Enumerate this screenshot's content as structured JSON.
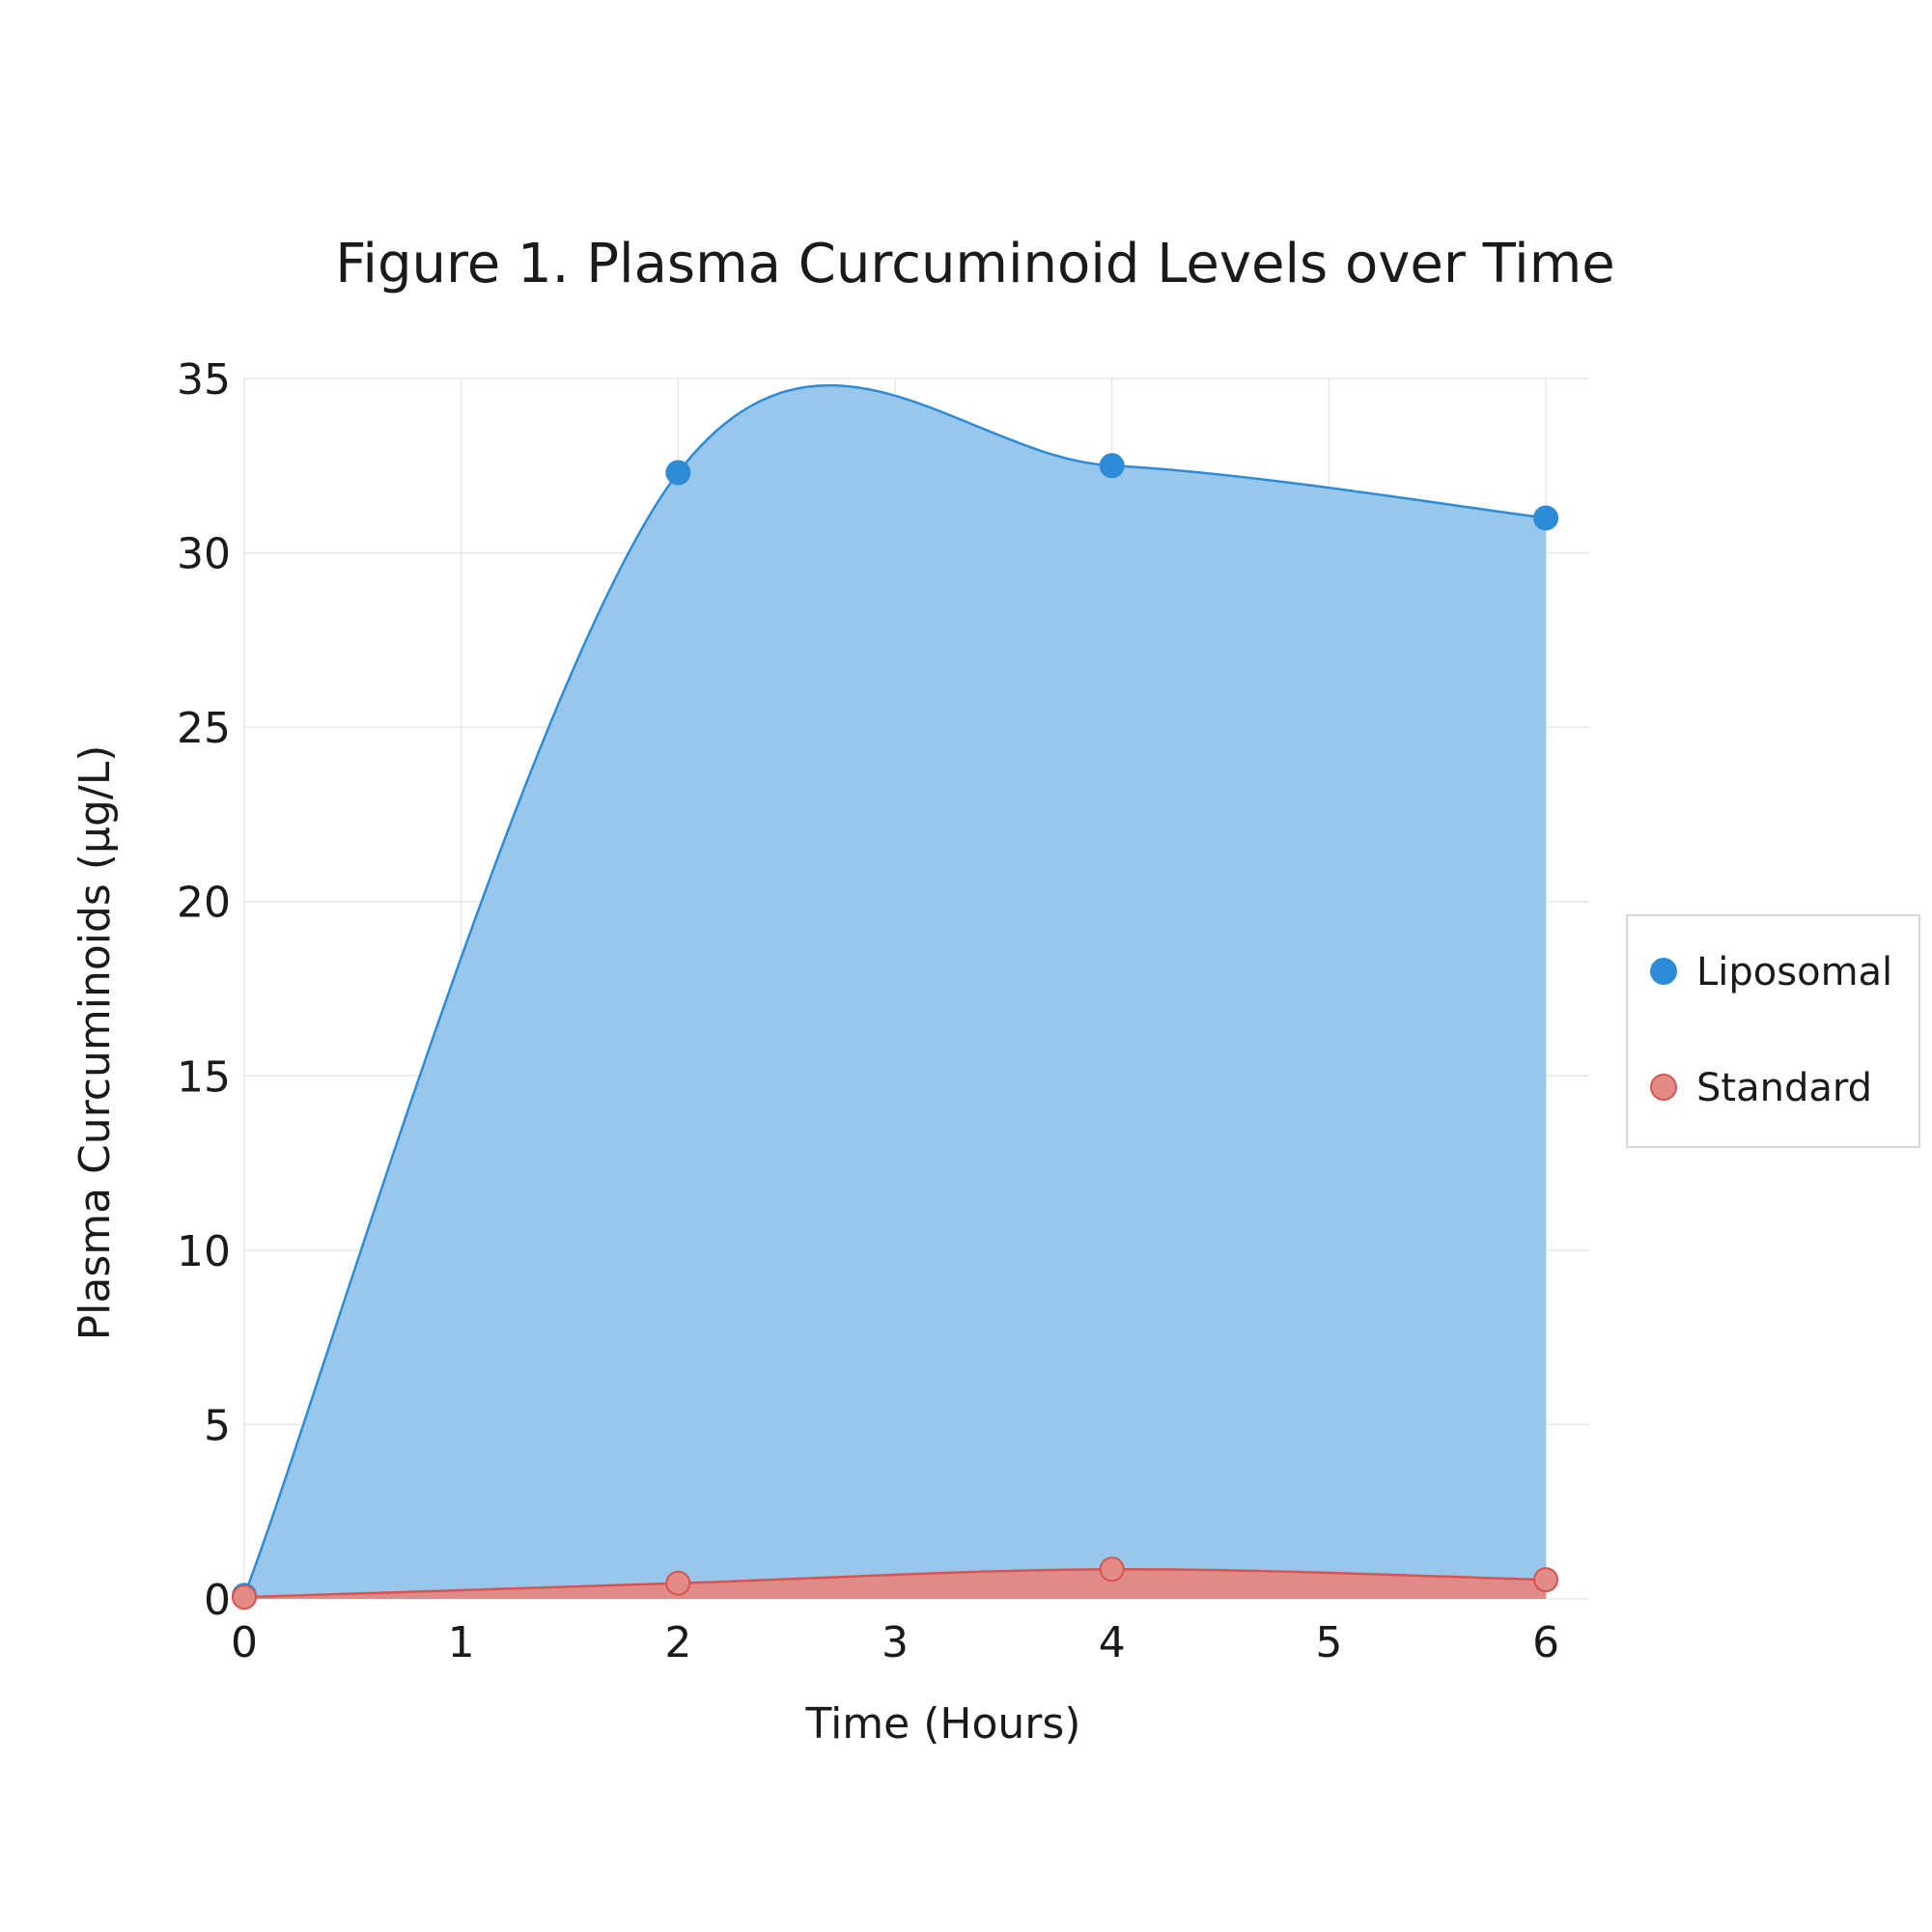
{
  "chart_data": {
    "type": "area",
    "title": "Figure 1. Plasma Curcuminoid Levels over Time",
    "xlabel": "Time (Hours)",
    "ylabel": "Plasma Curcuminoids (μg/L)",
    "x": [
      0,
      2,
      4,
      6
    ],
    "xlim": [
      0,
      6.2
    ],
    "ylim": [
      0,
      35
    ],
    "xticks": [
      "0",
      "1",
      "2",
      "3",
      "4",
      "5",
      "6"
    ],
    "yticks": [
      "0",
      "5",
      "10",
      "15",
      "20",
      "25",
      "30",
      "35"
    ],
    "grid": true,
    "legend_position": "right",
    "series": [
      {
        "name": "Liposomal",
        "values": [
          0.1,
          32.3,
          32.5,
          31.0
        ],
        "color": "#2E8BD6",
        "fill": "#99C6EB"
      },
      {
        "name": "Standard",
        "values": [
          0.05,
          0.45,
          0.85,
          0.55
        ],
        "color": "#D9534F",
        "fill": "#E08A8A",
        "marker": "#E38C87"
      }
    ]
  }
}
